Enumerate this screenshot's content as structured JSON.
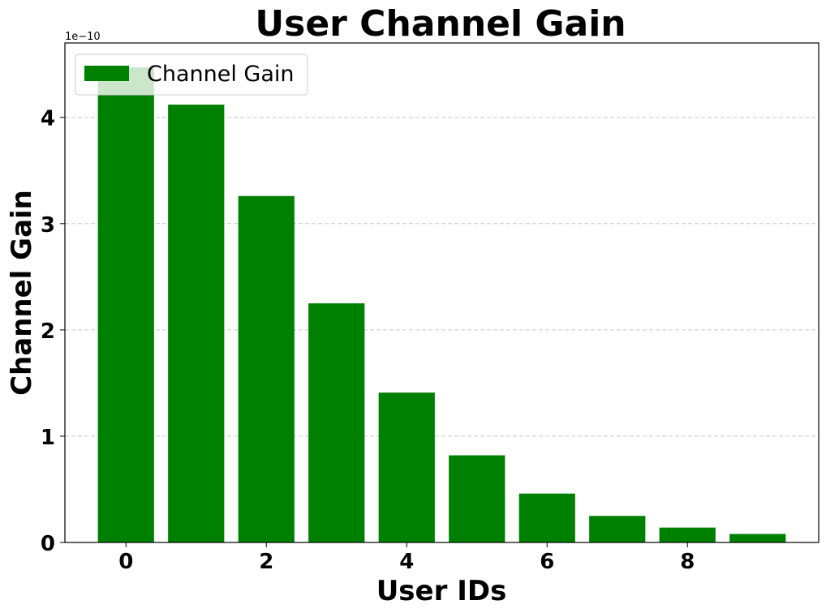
{
  "chart_data": {
    "type": "bar",
    "title": "User Channel Gain",
    "xlabel": "User IDs",
    "ylabel": "Channel Gain",
    "y_offset_text": "1e−10",
    "x": [
      0,
      1,
      2,
      3,
      4,
      5,
      6,
      7,
      8,
      9
    ],
    "values": [
      4.47,
      4.12,
      3.26,
      2.25,
      1.41,
      0.82,
      0.46,
      0.25,
      0.14,
      0.08
    ],
    "value_scale": 1e-10,
    "xlim": [
      -0.87,
      9.87
    ],
    "ylim": [
      0,
      4.7
    ],
    "xticks": [
      0,
      2,
      4,
      6,
      8
    ],
    "yticks": [
      0,
      1,
      2,
      3,
      4
    ],
    "xtick_labels": [
      "0",
      "2",
      "4",
      "6",
      "8"
    ],
    "ytick_labels": [
      "0",
      "1",
      "2",
      "3",
      "4"
    ],
    "grid": "y-dashed",
    "legend": {
      "placement": "top-left",
      "entries": [
        "Channel Gain"
      ]
    },
    "colors": {
      "bar": "#008000",
      "grid": "#c8c8c8"
    }
  }
}
